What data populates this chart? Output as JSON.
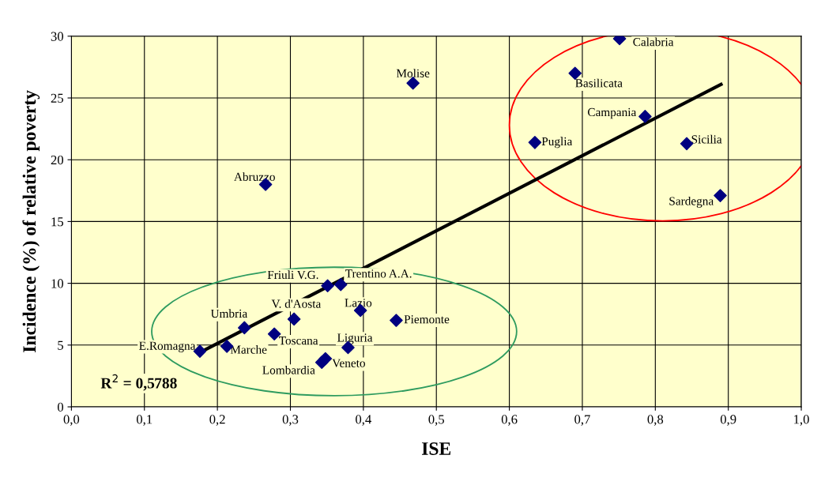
{
  "chart_data": {
    "type": "scatter",
    "xlabel": "ISE",
    "ylabel": "Incidence (%) of relative poverty",
    "series": [
      {
        "color": "#000080",
        "marker": "diamond",
        "x": [
          0.751,
          0.69,
          0.468,
          0.786,
          0.635,
          0.843,
          0.889,
          0.266,
          0.351,
          0.369,
          0.396,
          0.445,
          0.305,
          0.237,
          0.278,
          0.213,
          0.176,
          0.379,
          0.343,
          0.348
        ],
        "values": [
          29.8,
          27.0,
          26.2,
          23.5,
          21.4,
          21.3,
          17.1,
          18.0,
          9.8,
          9.9,
          7.8,
          7.0,
          7.1,
          6.4,
          5.9,
          4.9,
          4.5,
          4.8,
          3.6,
          3.9
        ]
      },
      {
        "type": "line",
        "color": "#000000",
        "marker": "none",
        "x": [
          0.176,
          0.89
        ],
        "values": [
          4.4,
          26.1
        ]
      }
    ],
    "annotations": [
      {
        "text": "Calabria",
        "x": 0.751,
        "y": 29.8
      },
      {
        "text": "Basilicata",
        "x": 0.69,
        "y": 27.0
      },
      {
        "text": "Molise",
        "x": 0.468,
        "y": 26.2
      },
      {
        "text": "Campania",
        "x": 0.786,
        "y": 23.5
      },
      {
        "text": "Puglia",
        "x": 0.635,
        "y": 21.4
      },
      {
        "text": "Sicilia",
        "x": 0.843,
        "y": 21.3
      },
      {
        "text": "Sardegna",
        "x": 0.889,
        "y": 17.1
      },
      {
        "text": "Abruzzo",
        "x": 0.266,
        "y": 18.0
      },
      {
        "text": "Friuli V.G.",
        "x": 0.351,
        "y": 9.8
      },
      {
        "text": "Trentino A.A.",
        "x": 0.369,
        "y": 9.9
      },
      {
        "text": "Lazio",
        "x": 0.396,
        "y": 7.8
      },
      {
        "text": "Piemonte",
        "x": 0.445,
        "y": 7.0
      },
      {
        "text": "V. d'Aosta",
        "x": 0.305,
        "y": 7.1
      },
      {
        "text": "Umbria",
        "x": 0.237,
        "y": 6.4
      },
      {
        "text": "Toscana",
        "x": 0.278,
        "y": 5.9
      },
      {
        "text": "Marche",
        "x": 0.213,
        "y": 4.9
      },
      {
        "text": "E.Romagna",
        "x": 0.176,
        "y": 4.5
      },
      {
        "text": "Liguria",
        "x": 0.379,
        "y": 4.8
      },
      {
        "text": "Lombardia",
        "x": 0.343,
        "y": 3.6
      },
      {
        "text": "Veneto",
        "x": 0.348,
        "y": 3.9
      },
      "R$^{2}$ = 0,5788"
    ],
    "xlim": [
      0,
      1.0
    ],
    "ylim": [
      0,
      30
    ],
    "xticks": [
      {
        "value": 0,
        "label": "0,0"
      },
      {
        "value": 0.1,
        "label": "0,1"
      },
      {
        "value": 0.2,
        "label": "0,2"
      },
      {
        "value": 0.3,
        "label": "0,3"
      },
      {
        "value": 0.4,
        "label": "0,4"
      },
      {
        "value": 0.5,
        "label": "0,5"
      },
      {
        "value": 0.6,
        "label": "0,6"
      },
      {
        "value": 0.7,
        "label": "0,7"
      },
      {
        "value": 0.8,
        "label": "0,8"
      },
      {
        "value": 0.9,
        "label": "0,9"
      },
      {
        "value": 1.0,
        "label": "1,0"
      }
    ],
    "yticks": [
      0,
      5,
      10,
      15,
      20,
      25,
      30
    ],
    "grid": true,
    "legend": false
  }
}
